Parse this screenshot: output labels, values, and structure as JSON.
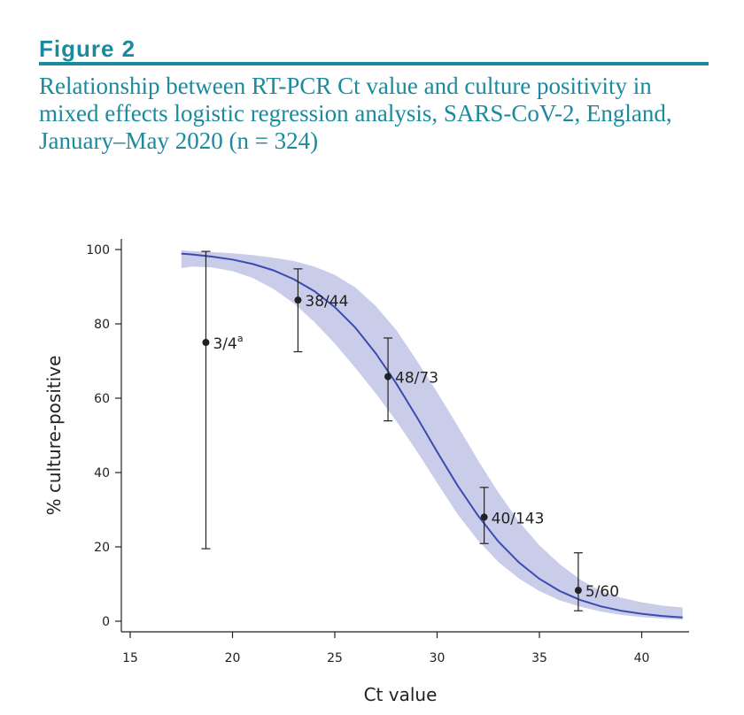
{
  "figure": {
    "label": "Figure 2",
    "title": "Relationship between RT-PCR Ct value and culture positivity in mixed effects logistic regression analysis, SARS-CoV-2, England, January–May 2020 (n = 324)"
  },
  "colors": {
    "heading": "#1a8a9e",
    "curve": "#3b4bb0",
    "band": "#c9cde9",
    "ink": "#222222"
  },
  "chart_data": {
    "type": "line",
    "xlabel": "Ct value",
    "ylabel": "% culture-positive",
    "xlim": [
      15,
      42
    ],
    "ylim": [
      0,
      100
    ],
    "xticks": [
      15,
      20,
      25,
      30,
      35,
      40
    ],
    "yticks": [
      0,
      20,
      40,
      60,
      80,
      100
    ],
    "grid": false,
    "series": [
      {
        "x": [
          17.5,
          18,
          19,
          20,
          21,
          22,
          23,
          24,
          25,
          26,
          27,
          28,
          29,
          30,
          31,
          32,
          33,
          34,
          35,
          36,
          37,
          38,
          39,
          40,
          41,
          42
        ],
        "y": [
          98.9,
          98.7,
          98.1,
          97.3,
          96.1,
          94.4,
          92.0,
          88.8,
          84.5,
          79.0,
          72.1,
          64.0,
          55.0,
          45.6,
          36.5,
          28.4,
          21.4,
          15.8,
          11.4,
          8.1,
          5.7,
          4.0,
          2.8,
          2.0,
          1.4,
          1.0
        ],
        "lower": [
          95.0,
          95.4,
          95.2,
          94.2,
          92.3,
          89.4,
          85.5,
          80.5,
          74.7,
          68.2,
          61.3,
          53.9,
          45.8,
          37.2,
          28.8,
          21.7,
          15.9,
          11.5,
          8.1,
          5.6,
          3.9,
          2.6,
          1.7,
          1.1,
          0.7,
          0.4
        ],
        "upper": [
          99.8,
          99.6,
          99.3,
          99.0,
          98.5,
          97.8,
          96.9,
          95.4,
          93.2,
          89.8,
          84.8,
          78.4,
          70.2,
          61.6,
          52.6,
          43.3,
          34.6,
          26.8,
          20.4,
          15.3,
          11.2,
          8.1,
          6.3,
          5.1,
          4.2,
          3.7
        ]
      }
    ],
    "points": [
      {
        "x": 18.7,
        "y": 75,
        "lo": 19.5,
        "hi": 99.5,
        "label": "3/4",
        "sup": "a"
      },
      {
        "x": 23.2,
        "y": 86.4,
        "lo": 72.5,
        "hi": 94.8,
        "label": "38/44",
        "sup": ""
      },
      {
        "x": 27.6,
        "y": 65.8,
        "lo": 53.9,
        "hi": 76.2,
        "label": "48/73",
        "sup": ""
      },
      {
        "x": 32.3,
        "y": 28.0,
        "lo": 20.9,
        "hi": 36.0,
        "label": "40/143",
        "sup": ""
      },
      {
        "x": 36.9,
        "y": 8.3,
        "lo": 2.8,
        "hi": 18.4,
        "label": "5/60",
        "sup": ""
      }
    ]
  }
}
